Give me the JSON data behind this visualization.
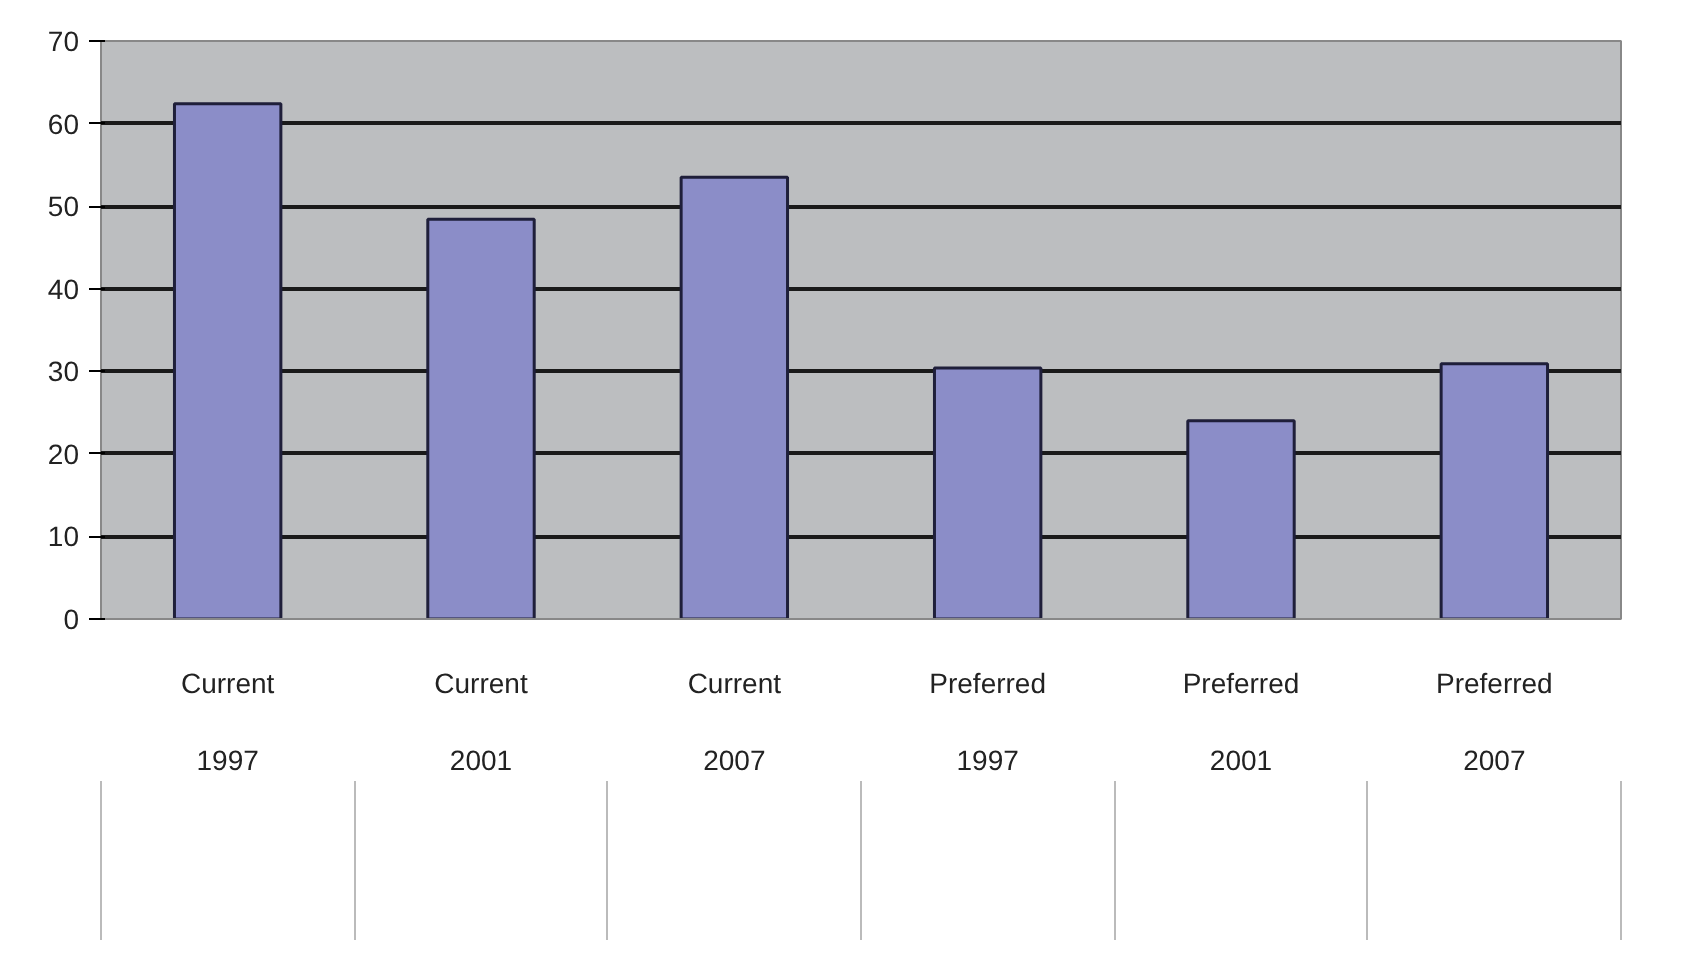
{
  "chart_data": {
    "type": "bar",
    "categories": [
      "Current\n1997",
      "Current\n2001",
      "Current\n2007",
      "Preferred\n1997",
      "Preferred\n2001",
      "Preferred\n2007"
    ],
    "values": [
      62.4,
      48.4,
      53.5,
      30.4,
      24.0,
      30.9
    ],
    "color": "#8b8dc8",
    "ylim": [
      0,
      70
    ],
    "yticks": [
      0,
      10,
      20,
      30,
      40,
      50,
      60,
      70
    ],
    "grid": "y"
  }
}
